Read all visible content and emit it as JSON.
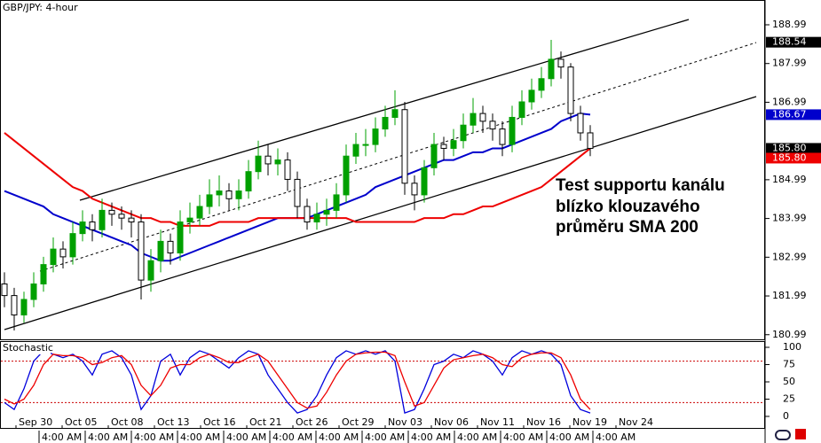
{
  "chart_data": [
    {
      "type": "candlestick",
      "title": "GBP/JPY: 4-hour",
      "open": [
        182.3,
        182.0,
        181.5,
        181.9,
        182.3,
        182.8,
        183.2,
        183.0,
        183.6,
        183.9,
        183.7,
        184.2,
        184.1,
        184.0,
        183.9,
        182.4,
        182.9,
        183.4,
        183.1,
        183.9,
        184.0,
        184.3,
        184.6,
        184.7,
        184.5,
        184.7,
        185.2,
        185.6,
        185.4,
        185.5,
        185.0,
        184.3,
        183.9,
        184.1,
        184.2,
        184.6,
        185.6,
        185.9,
        185.9,
        186.3,
        186.6,
        186.8,
        184.9,
        184.6,
        185.3,
        185.9,
        185.8,
        186.0,
        186.4,
        186.7,
        186.5,
        186.3,
        185.9,
        186.6,
        187.0,
        187.3,
        187.6,
        188.1,
        187.9,
        186.7,
        186.2
      ],
      "high": [
        182.6,
        182.2,
        182.1,
        182.6,
        183.0,
        183.5,
        183.4,
        183.9,
        184.2,
        184.1,
        184.5,
        184.4,
        184.3,
        184.2,
        184.1,
        183.2,
        183.7,
        183.6,
        184.2,
        184.4,
        184.6,
        185.0,
        185.1,
        184.9,
        185.0,
        185.5,
        186.0,
        185.9,
        185.8,
        185.7,
        185.2,
        184.5,
        184.4,
        184.5,
        184.9,
        185.9,
        186.2,
        186.3,
        186.6,
        186.9,
        187.3,
        187.0,
        185.1,
        185.5,
        186.2,
        186.1,
        186.3,
        186.7,
        187.1,
        186.9,
        186.7,
        186.5,
        186.9,
        187.3,
        187.6,
        187.9,
        188.6,
        188.3,
        188.0,
        186.9,
        186.4
      ],
      "low": [
        181.7,
        181.1,
        181.3,
        181.7,
        182.1,
        182.6,
        182.7,
        182.8,
        183.4,
        183.4,
        183.5,
        183.8,
        183.7,
        183.5,
        181.9,
        182.1,
        182.6,
        182.8,
        182.9,
        183.6,
        183.8,
        184.1,
        184.3,
        184.2,
        184.2,
        184.5,
        185.0,
        185.1,
        185.1,
        184.7,
        184.0,
        183.7,
        183.7,
        183.8,
        184.0,
        184.4,
        185.4,
        185.6,
        185.7,
        186.1,
        186.4,
        184.6,
        184.2,
        184.4,
        185.1,
        185.5,
        185.6,
        185.8,
        186.2,
        186.2,
        186.0,
        185.6,
        185.7,
        186.4,
        186.8,
        187.1,
        187.4,
        187.6,
        186.5,
        186.0,
        185.6
      ],
      "close": [
        182.0,
        181.5,
        181.9,
        182.3,
        182.8,
        183.2,
        183.0,
        183.6,
        183.9,
        183.7,
        184.2,
        184.1,
        184.0,
        183.9,
        182.4,
        182.9,
        183.4,
        183.1,
        183.9,
        184.0,
        184.3,
        184.6,
        184.7,
        184.5,
        184.7,
        185.2,
        185.6,
        185.4,
        185.5,
        185.0,
        184.3,
        183.9,
        184.1,
        184.2,
        184.6,
        185.6,
        185.9,
        185.9,
        186.3,
        186.6,
        186.8,
        184.9,
        184.6,
        185.3,
        185.9,
        185.8,
        186.0,
        186.4,
        186.7,
        186.5,
        186.3,
        185.9,
        186.6,
        187.0,
        187.3,
        187.6,
        188.1,
        187.9,
        186.7,
        186.2,
        185.8
      ],
      "up_color": "#00a000",
      "down_color": "#000000",
      "overlays": [
        {
          "color": "#0000cc",
          "values": [
            184.7,
            184.6,
            184.5,
            184.4,
            184.3,
            184.1,
            184.0,
            183.9,
            183.8,
            183.7,
            183.6,
            183.5,
            183.4,
            183.3,
            183.1,
            183.0,
            182.9,
            182.9,
            183.0,
            183.1,
            183.2,
            183.3,
            183.4,
            183.5,
            183.6,
            183.7,
            183.8,
            183.9,
            184.0,
            184.0,
            184.0,
            184.0,
            184.1,
            184.2,
            184.3,
            184.4,
            184.5,
            184.6,
            184.8,
            184.9,
            185.0,
            185.1,
            185.2,
            185.3,
            185.4,
            185.5,
            185.5,
            185.6,
            185.7,
            185.7,
            185.8,
            185.8,
            185.9,
            186.0,
            186.1,
            186.2,
            186.3,
            186.5,
            186.6,
            186.7,
            186.67
          ]
        },
        {
          "color": "#ee0000",
          "values": [
            186.2,
            186.0,
            185.8,
            185.6,
            185.4,
            185.2,
            185.0,
            184.8,
            184.7,
            184.5,
            184.4,
            184.3,
            184.2,
            184.1,
            184.0,
            184.0,
            183.9,
            183.9,
            183.8,
            183.8,
            183.8,
            183.8,
            183.9,
            183.9,
            183.9,
            183.9,
            184.0,
            184.0,
            184.0,
            184.0,
            184.0,
            184.0,
            184.0,
            184.0,
            184.0,
            184.0,
            183.9,
            183.9,
            183.9,
            183.9,
            183.9,
            183.9,
            183.9,
            184.0,
            184.0,
            184.0,
            184.1,
            184.1,
            184.2,
            184.3,
            184.3,
            184.4,
            184.5,
            184.6,
            184.7,
            184.8,
            185.0,
            185.2,
            185.4,
            185.6,
            185.8
          ]
        }
      ],
      "ylim": [
        180.87,
        189.63
      ],
      "yticks": [
        188.99,
        187.99,
        186.99,
        184.99,
        183.99,
        182.99,
        181.99,
        180.99
      ],
      "price_markers": [
        {
          "value": 188.54,
          "color": "#000000"
        },
        {
          "value": 186.67,
          "color": "#0000cc"
        },
        {
          "value": 185.8,
          "label": "185.80",
          "color": "#000000"
        },
        {
          "value": 185.8,
          "label": "185.80",
          "color": "#ee0000"
        }
      ],
      "annotation": [
        "Test supportu kanálu",
        "blízko klouzavého",
        "průměru SMA 200"
      ]
    },
    {
      "type": "line",
      "title": "Stochastic",
      "series": [
        {
          "color": "#0000dd",
          "values": [
            20,
            10,
            40,
            80,
            95,
            90,
            85,
            90,
            80,
            60,
            90,
            95,
            85,
            60,
            10,
            30,
            80,
            90,
            60,
            85,
            95,
            90,
            80,
            70,
            85,
            95,
            90,
            60,
            40,
            20,
            5,
            10,
            30,
            60,
            85,
            95,
            90,
            95,
            90,
            95,
            80,
            5,
            10,
            40,
            75,
            80,
            90,
            85,
            95,
            90,
            80,
            60,
            85,
            95,
            90,
            95,
            90,
            75,
            30,
            10,
            5
          ]
        },
        {
          "color": "#ee0000",
          "values": [
            25,
            18,
            25,
            45,
            75,
            90,
            88,
            88,
            85,
            75,
            78,
            85,
            88,
            75,
            45,
            30,
            45,
            70,
            75,
            75,
            85,
            90,
            85,
            78,
            78,
            85,
            90,
            80,
            60,
            40,
            20,
            12,
            15,
            35,
            60,
            80,
            90,
            92,
            93,
            93,
            88,
            50,
            15,
            20,
            45,
            70,
            82,
            85,
            88,
            90,
            85,
            75,
            72,
            85,
            90,
            92,
            92,
            85,
            60,
            25,
            10
          ]
        }
      ],
      "levels": [
        80,
        20
      ],
      "ylim": [
        -16.7,
        109
      ],
      "yticks": [
        100,
        75,
        50,
        25,
        0
      ],
      "date_labels": [
        "Sep 30",
        "Oct 05",
        "Oct 08",
        "Oct 13",
        "Oct 16",
        "Oct 21",
        "Oct 26",
        "Oct 29",
        "Nov 03",
        "Nov 06",
        "Nov 11",
        "Nov 16",
        "Nov 19",
        "Nov 24"
      ],
      "time_labels": [
        "4:00 AM",
        "4:00 AM",
        "4:00 AM",
        "4:00 AM",
        "4:00 AM",
        "4:00 AM",
        "4:00 AM",
        "4:00 AM",
        "4:00 AM",
        "4:00 AM",
        "4:00 AM",
        "4:00 AM",
        "4:00 AM"
      ]
    }
  ]
}
